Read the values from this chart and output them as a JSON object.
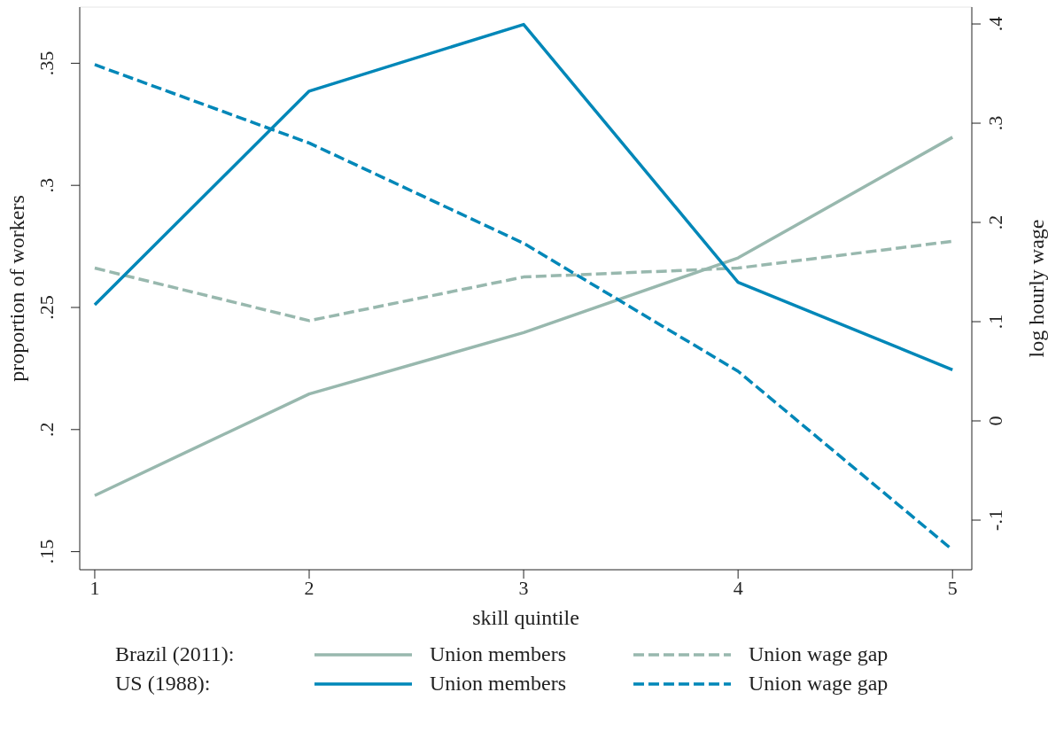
{
  "chart_data": {
    "type": "line",
    "xlabel": "skill quintile",
    "ylabel": "proportion of workers",
    "y2label": "log hourly wage",
    "x": [
      1,
      2,
      3,
      4,
      5
    ],
    "xlim": [
      0.93,
      5.09
    ],
    "xticks": [
      1,
      2,
      3,
      4,
      5
    ],
    "ylim": [
      0.1426,
      0.373
    ],
    "yticks": [
      {
        "value": 0.15,
        "label": ".15"
      },
      {
        "value": 0.2,
        "label": ".2"
      },
      {
        "value": 0.25,
        "label": ".25"
      },
      {
        "value": 0.3,
        "label": ".3"
      },
      {
        "value": 0.35,
        "label": ".35"
      }
    ],
    "y2lim": [
      -0.15,
      0.417
    ],
    "y2ticks": [
      {
        "value": -0.1,
        "label": "-.1"
      },
      0,
      {
        "value": 0.1,
        "label": ".1"
      },
      {
        "value": 0.2,
        "label": ".2"
      },
      {
        "value": 0.3,
        "label": ".3"
      },
      {
        "value": 0.4,
        "label": ".4"
      }
    ],
    "series": [
      {
        "name": "Union members",
        "color": "#98b8ae",
        "values": [
          0.173,
          0.2146,
          0.2397,
          0.2703,
          0.3197
        ],
        "line_style": "solid"
      },
      {
        "name": "Union wage gap",
        "color": "#98b8ae",
        "values": [
          0.154,
          0.101,
          0.145,
          0.154,
          0.181
        ],
        "line_style": "dashed",
        "axis": "y2"
      },
      {
        "name": "Union members",
        "color": "#0087b8",
        "values": [
          0.2511,
          0.3386,
          0.3659,
          0.2603,
          0.2245
        ],
        "line_style": "solid"
      },
      {
        "name": "Union wage gap",
        "color": "#0087b8",
        "values": [
          0.359,
          0.28,
          0.179,
          0.05,
          -0.13
        ],
        "line_style": "dashed",
        "axis": "y2"
      }
    ],
    "annotations": [
      "Brazil (2011):",
      "US (1988):"
    ],
    "legend": "bottom",
    "grid": false,
    "marker": "none"
  }
}
